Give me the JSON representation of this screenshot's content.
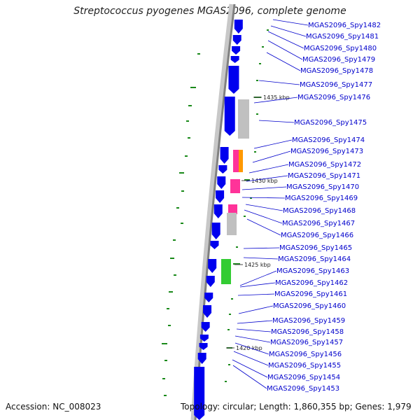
{
  "title": "Streptococcus pyogenes MGAS2096, complete genome",
  "accession": "Accession: NC_008023",
  "summary": "Topology: circular; Length: 1,860,355 bp; Genes: 1,979",
  "colors": {
    "backbone_dark": "#808080",
    "backbone_light": "#c8c8c8",
    "gene": "#0000ee",
    "gc_skew": "#1a8a1a",
    "label": "#0000cc",
    "cog_gray": "#c0c0c0",
    "cog_pink": "#ff3399",
    "cog_orange": "#ff9900",
    "cog_green": "#33cc33"
  },
  "tick_labels": [
    "1435 kbp",
    "1430 kbp",
    "1425 kbp",
    "1420 kbp"
  ],
  "gene_labels": [
    "MGAS2096_Spy1482",
    "MGAS2096_Spy1481",
    "MGAS2096_Spy1480",
    "MGAS2096_Spy1479",
    "MGAS2096_Spy1478",
    "MGAS2096_Spy1477",
    "MGAS2096_Spy1476",
    "MGAS2096_Spy1475",
    "MGAS2096_Spy1474",
    "MGAS2096_Spy1473",
    "MGAS2096_Spy1472",
    "MGAS2096_Spy1471",
    "MGAS2096_Spy1470",
    "MGAS2096_Spy1469",
    "MGAS2096_Spy1468",
    "MGAS2096_Spy1467",
    "MGAS2096_Spy1466",
    "MGAS2096_Spy1465",
    "MGAS2096_Spy1464",
    "MGAS2096_Spy1463",
    "MGAS2096_Spy1462",
    "MGAS2096_Spy1461",
    "MGAS2096_Spy1460",
    "MGAS2096_Spy1459",
    "MGAS2096_Spy1458",
    "MGAS2096_Spy1457",
    "MGAS2096_Spy1456",
    "MGAS2096_Spy1455",
    "MGAS2096_Spy1454",
    "MGAS2096_Spy1453"
  ]
}
